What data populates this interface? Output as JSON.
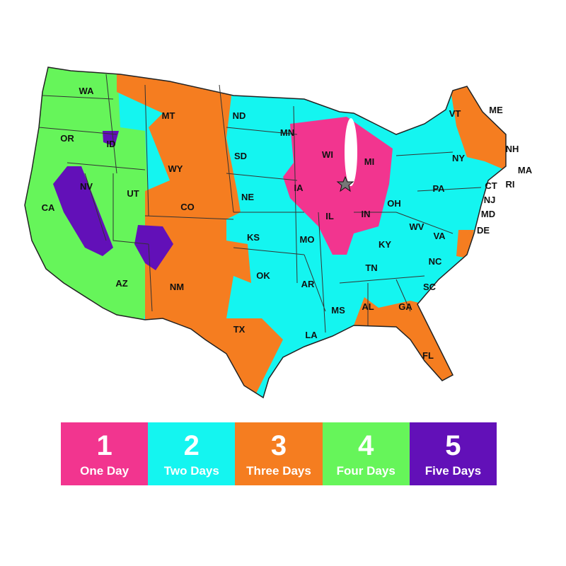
{
  "map": {
    "states": [
      "WA",
      "OR",
      "CA",
      "NV",
      "ID",
      "MT",
      "WY",
      "UT",
      "AZ",
      "CO",
      "NM",
      "ND",
      "SD",
      "NE",
      "KS",
      "OK",
      "TX",
      "MN",
      "IA",
      "MO",
      "AR",
      "LA",
      "WI",
      "IL",
      "MI",
      "IN",
      "OH",
      "KY",
      "TN",
      "MS",
      "AL",
      "GA",
      "FL",
      "SC",
      "NC",
      "VA",
      "WV",
      "PA",
      "NY",
      "VT",
      "ME",
      "NH",
      "MA",
      "RI",
      "CT",
      "NJ",
      "MD",
      "DE"
    ],
    "origin_marker": "star-icon",
    "zone_colors": {
      "1": "#f2358f",
      "2": "#14f5f0",
      "3": "#f57d20",
      "4": "#66f55a",
      "5": "#6210b8"
    }
  },
  "legend": [
    {
      "number": "1",
      "label": "One Day",
      "color": "#f2358f"
    },
    {
      "number": "2",
      "label": "Two Days",
      "color": "#14f5f0"
    },
    {
      "number": "3",
      "label": "Three Days",
      "color": "#f57d20"
    },
    {
      "number": "4",
      "label": "Four Days",
      "color": "#66f55a"
    },
    {
      "number": "5",
      "label": "Five Days",
      "color": "#6210b8"
    }
  ]
}
